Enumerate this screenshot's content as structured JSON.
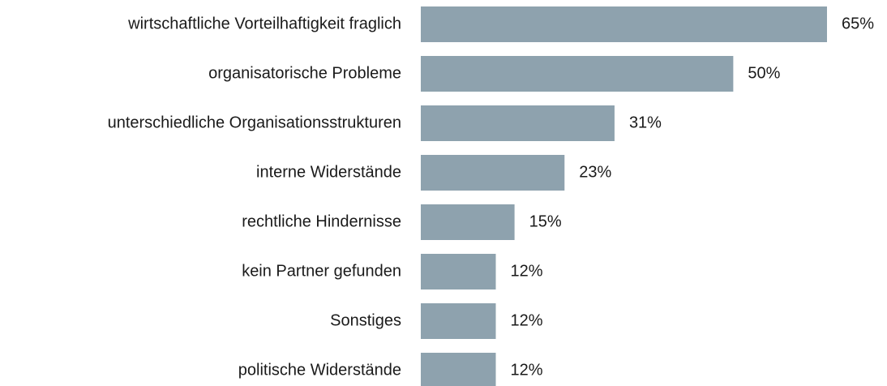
{
  "chart_data": {
    "type": "bar",
    "orientation": "horizontal",
    "categories": [
      "wirtschaftliche Vorteilhaftigkeit fraglich",
      "organisatorische Probleme",
      "unterschiedliche Organisationsstrukturen",
      "interne Widerstände",
      "rechtliche Hindernisse",
      "kein Partner gefunden",
      "Sonstiges",
      "politische Widerstände"
    ],
    "values": [
      65,
      50,
      31,
      23,
      15,
      12,
      12,
      12
    ],
    "value_labels": [
      "65%",
      "50%",
      "31%",
      "23%",
      "15%",
      "12%",
      "12%",
      "12%"
    ],
    "color": "#8ea2ae"
  }
}
